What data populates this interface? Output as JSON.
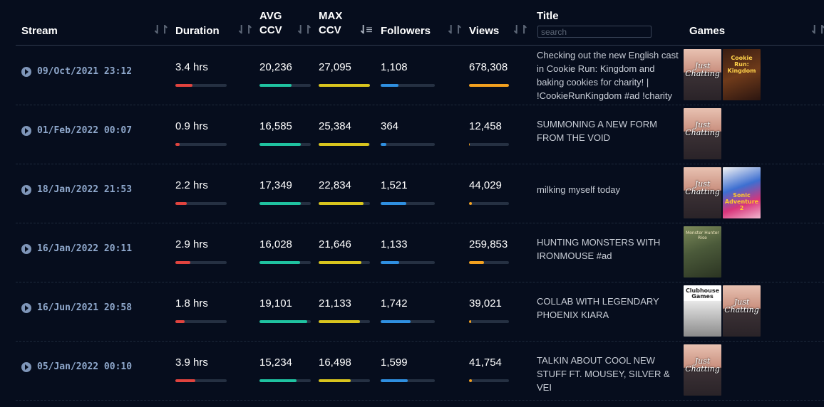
{
  "columns": {
    "stream": "Stream",
    "duration": "Duration",
    "avg_ccv_1": "AVG",
    "avg_ccv_2": "CCV",
    "max_ccv_1": "MAX",
    "max_ccv_2": "CCV",
    "followers": "Followers",
    "views": "Views",
    "title": "Title",
    "title_search_placeholder": "search",
    "games": "Games"
  },
  "sort_icon": "sort-arrows-icon",
  "active_sort": "max_ccv",
  "colors": {
    "duration": "#e0433e",
    "avg_ccv": "#1fc2a0",
    "max_ccv": "#d8c41e",
    "followers": "#2f8fe0",
    "views": "#f2a01f"
  },
  "rows": [
    {
      "date": "09/Oct/2021 23:12",
      "duration": "3.4 hrs",
      "duration_frac": 0.34,
      "avg_ccv": "20,236",
      "avg_ccv_frac": 0.62,
      "max_ccv": "27,095",
      "max_ccv_frac": 1.0,
      "followers": "1,108",
      "followers_frac": 0.33,
      "views": "678,308",
      "views_frac": 1.0,
      "title": "Checking out the new English cast in Cookie Run: Kingdom and baking cookies for charity! | !CookieRunKingdom #ad !charity",
      "games": [
        {
          "name": "Just Chatting",
          "art": "jc"
        },
        {
          "name": "Cookie Run: Kingdom",
          "art": "crk"
        }
      ]
    },
    {
      "date": "01/Feb/2022 00:07",
      "duration": "0.9 hrs",
      "duration_frac": 0.09,
      "avg_ccv": "16,585",
      "avg_ccv_frac": 0.8,
      "max_ccv": "25,384",
      "max_ccv_frac": 0.98,
      "followers": "364",
      "followers_frac": 0.1,
      "views": "12,458",
      "views_frac": 0.02,
      "title": "SUMMONING A NEW FORM FROM THE VOID",
      "games": [
        {
          "name": "Just Chatting",
          "art": "jc"
        }
      ]
    },
    {
      "date": "18/Jan/2022 21:53",
      "duration": "2.2 hrs",
      "duration_frac": 0.22,
      "avg_ccv": "17,349",
      "avg_ccv_frac": 0.81,
      "max_ccv": "22,834",
      "max_ccv_frac": 0.88,
      "followers": "1,521",
      "followers_frac": 0.47,
      "views": "44,029",
      "views_frac": 0.07,
      "title": "milking myself today",
      "games": [
        {
          "name": "Just Chatting",
          "art": "jc"
        },
        {
          "name": "Sonic Adventure 2",
          "art": "sonic"
        }
      ]
    },
    {
      "date": "16/Jan/2022 20:11",
      "duration": "2.9 hrs",
      "duration_frac": 0.29,
      "avg_ccv": "16,028",
      "avg_ccv_frac": 0.79,
      "max_ccv": "21,646",
      "max_ccv_frac": 0.83,
      "followers": "1,133",
      "followers_frac": 0.34,
      "views": "259,853",
      "views_frac": 0.38,
      "title": "HUNTING MONSTERS WITH IRONMOUSE #ad",
      "games": [
        {
          "name": "Monster Hunter Rise",
          "art": "mh"
        }
      ]
    },
    {
      "date": "16/Jun/2021 20:58",
      "duration": "1.8 hrs",
      "duration_frac": 0.18,
      "avg_ccv": "19,101",
      "avg_ccv_frac": 0.93,
      "max_ccv": "21,133",
      "max_ccv_frac": 0.81,
      "followers": "1,742",
      "followers_frac": 0.55,
      "views": "39,021",
      "views_frac": 0.06,
      "title": "COLLAB WITH LEGENDARY PHOENIX KIARA",
      "games": [
        {
          "name": "Clubhouse Games",
          "art": "ch"
        },
        {
          "name": "Just Chatting",
          "art": "jc"
        }
      ]
    },
    {
      "date": "05/Jan/2022 00:10",
      "duration": "3.9 hrs",
      "duration_frac": 0.39,
      "avg_ccv": "15,234",
      "avg_ccv_frac": 0.72,
      "max_ccv": "16,498",
      "max_ccv_frac": 0.63,
      "followers": "1,599",
      "followers_frac": 0.5,
      "views": "41,754",
      "views_frac": 0.07,
      "title": "TALKIN ABOUT COOL NEW STUFF FT. MOUSEY, SILVER & VEI",
      "games": [
        {
          "name": "Just Chatting",
          "art": "jc"
        }
      ]
    }
  ]
}
